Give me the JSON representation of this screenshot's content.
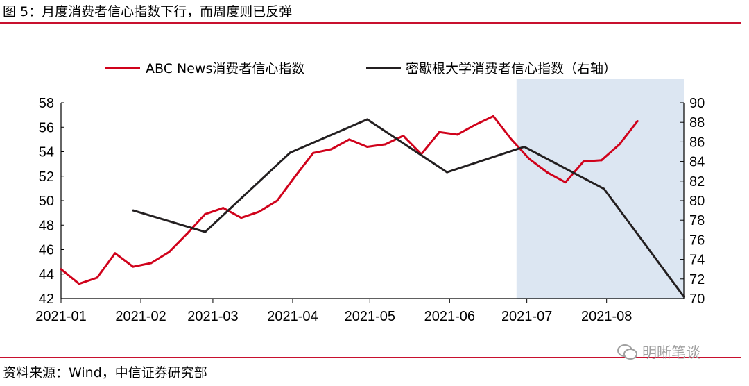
{
  "header": {
    "title": "图 5：月度消费者信心指数下行，而周度则已反弹"
  },
  "footer": {
    "source": "资料来源：Wind，中信证券研究部"
  },
  "watermark": {
    "text": "明晰笔谈",
    "icon": "wechat-icon"
  },
  "colors": {
    "series_red": "#d0021b",
    "series_black": "#231f20",
    "shade": "#dce6f2",
    "rule": "#c8102e"
  },
  "chart_data": {
    "type": "line",
    "legend_position": "top",
    "grid": false,
    "shaded_region": {
      "x_start": "2021-06-27",
      "x_end": "2021-08-31"
    },
    "x_axis": {
      "type": "date",
      "range": [
        "2021-01-01",
        "2021-08-31"
      ],
      "ticks": [
        "2021-01-01",
        "2021-02-01",
        "2021-03-01",
        "2021-04-01",
        "2021-05-01",
        "2021-06-01",
        "2021-07-01",
        "2021-08-01"
      ],
      "tick_labels": [
        "2021-01",
        "2021-02",
        "2021-03",
        "2021-04",
        "2021-05",
        "2021-06",
        "2021-07",
        "2021-08"
      ]
    },
    "y_left": {
      "ylim": [
        42,
        58
      ],
      "ticks": [
        42,
        44,
        46,
        48,
        50,
        52,
        54,
        56,
        58
      ]
    },
    "y_right": {
      "ylim": [
        70,
        90
      ],
      "ticks": [
        70,
        72,
        74,
        76,
        78,
        80,
        82,
        84,
        86,
        88,
        90
      ]
    },
    "series": [
      {
        "name": "ABC News消费者信心指数",
        "axis": "left",
        "color": "#d0021b",
        "points": [
          [
            "2021-01-01",
            44.4
          ],
          [
            "2021-01-08",
            43.2
          ],
          [
            "2021-01-15",
            43.7
          ],
          [
            "2021-01-22",
            45.7
          ],
          [
            "2021-01-29",
            44.6
          ],
          [
            "2021-02-05",
            44.9
          ],
          [
            "2021-02-12",
            45.8
          ],
          [
            "2021-02-19",
            47.3
          ],
          [
            "2021-02-26",
            48.9
          ],
          [
            "2021-03-05",
            49.4
          ],
          [
            "2021-03-12",
            48.6
          ],
          [
            "2021-03-19",
            49.1
          ],
          [
            "2021-03-26",
            50.0
          ],
          [
            "2021-04-02",
            52.0
          ],
          [
            "2021-04-09",
            53.9
          ],
          [
            "2021-04-16",
            54.2
          ],
          [
            "2021-04-23",
            55.0
          ],
          [
            "2021-04-30",
            54.4
          ],
          [
            "2021-05-07",
            54.6
          ],
          [
            "2021-05-14",
            55.3
          ],
          [
            "2021-05-21",
            53.8
          ],
          [
            "2021-05-28",
            55.6
          ],
          [
            "2021-06-04",
            55.4
          ],
          [
            "2021-06-11",
            56.2
          ],
          [
            "2021-06-18",
            56.9
          ],
          [
            "2021-06-25",
            55.0
          ],
          [
            "2021-07-02",
            53.4
          ],
          [
            "2021-07-09",
            52.3
          ],
          [
            "2021-07-16",
            51.5
          ],
          [
            "2021-07-23",
            53.2
          ],
          [
            "2021-07-30",
            53.3
          ],
          [
            "2021-08-06",
            54.6
          ],
          [
            "2021-08-13",
            56.5
          ]
        ]
      },
      {
        "name": "密歇根大学消费者信心指数（右轴）",
        "axis": "right",
        "color": "#231f20",
        "points": [
          [
            "2021-01-29",
            79.0
          ],
          [
            "2021-02-26",
            76.8
          ],
          [
            "2021-03-31",
            84.9
          ],
          [
            "2021-04-30",
            88.3
          ],
          [
            "2021-05-31",
            82.9
          ],
          [
            "2021-06-30",
            85.5
          ],
          [
            "2021-07-31",
            81.2
          ],
          [
            "2021-08-31",
            70.2
          ]
        ]
      }
    ]
  }
}
